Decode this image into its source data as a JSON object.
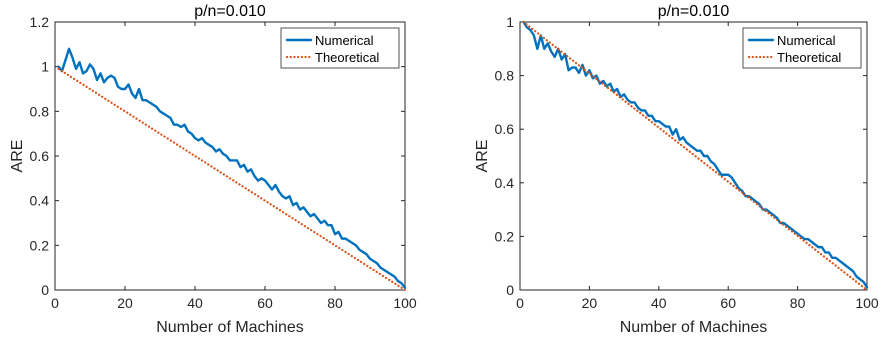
{
  "colors": {
    "numerical": "#0072BD",
    "theoretical": "#D95319",
    "axis": "#262626"
  },
  "chart_data": [
    {
      "type": "line",
      "title": "p/n=0.010",
      "xlabel": "Number of Machines",
      "ylabel": "ARE",
      "xlim": [
        0,
        100
      ],
      "ylim": [
        0,
        1.2
      ],
      "xticks": [
        0,
        20,
        40,
        60,
        80,
        100
      ],
      "xtick_labels": [
        "0",
        "20",
        "40",
        "60",
        "80",
        "100"
      ],
      "yticks": [
        0,
        0.2,
        0.4,
        0.6,
        0.8,
        1,
        1.2
      ],
      "ytick_labels": [
        "0",
        "0.2",
        "0.4",
        "0.6",
        "0.8",
        "1",
        "1.2"
      ],
      "grid": false,
      "legend": "top-right",
      "series": [
        {
          "name": "Numerical",
          "style": "solid",
          "x": [
            1,
            2,
            3,
            4,
            5,
            6,
            7,
            8,
            9,
            10,
            11,
            12,
            13,
            14,
            15,
            16,
            17,
            18,
            19,
            20,
            21,
            22,
            23,
            24,
            25,
            26,
            27,
            28,
            29,
            30,
            31,
            32,
            33,
            34,
            35,
            36,
            37,
            38,
            39,
            40,
            41,
            42,
            43,
            44,
            45,
            46,
            47,
            48,
            49,
            50,
            51,
            52,
            53,
            54,
            55,
            56,
            57,
            58,
            59,
            60,
            61,
            62,
            63,
            64,
            65,
            66,
            67,
            68,
            69,
            70,
            71,
            72,
            73,
            74,
            75,
            76,
            77,
            78,
            79,
            80,
            81,
            82,
            83,
            84,
            85,
            86,
            87,
            88,
            89,
            90,
            91,
            92,
            93,
            94,
            95,
            96,
            97,
            98,
            99,
            100
          ],
          "y": [
            1.0,
            0.98,
            1.03,
            1.08,
            1.04,
            0.99,
            1.02,
            0.97,
            0.98,
            1.01,
            0.99,
            0.94,
            0.97,
            0.93,
            0.95,
            0.96,
            0.95,
            0.91,
            0.9,
            0.9,
            0.92,
            0.88,
            0.86,
            0.9,
            0.85,
            0.85,
            0.84,
            0.83,
            0.82,
            0.8,
            0.79,
            0.78,
            0.77,
            0.74,
            0.74,
            0.73,
            0.74,
            0.71,
            0.7,
            0.68,
            0.67,
            0.68,
            0.66,
            0.65,
            0.64,
            0.62,
            0.63,
            0.61,
            0.6,
            0.58,
            0.58,
            0.58,
            0.55,
            0.56,
            0.53,
            0.54,
            0.51,
            0.49,
            0.5,
            0.49,
            0.47,
            0.45,
            0.47,
            0.44,
            0.42,
            0.41,
            0.42,
            0.38,
            0.39,
            0.36,
            0.37,
            0.35,
            0.33,
            0.34,
            0.32,
            0.3,
            0.31,
            0.29,
            0.29,
            0.25,
            0.26,
            0.23,
            0.23,
            0.22,
            0.21,
            0.2,
            0.18,
            0.17,
            0.16,
            0.14,
            0.13,
            0.12,
            0.1,
            0.09,
            0.08,
            0.07,
            0.06,
            0.04,
            0.03,
            0.01
          ]
        },
        {
          "name": "Theoretical",
          "style": "dotted",
          "x": [
            1,
            100
          ],
          "y": [
            0.99,
            0.0
          ]
        }
      ]
    },
    {
      "type": "line",
      "title": "p/n=0.010",
      "xlabel": "Number of Machines",
      "ylabel": "ARE",
      "xlim": [
        0,
        100
      ],
      "ylim": [
        0,
        1
      ],
      "xticks": [
        0,
        20,
        40,
        60,
        80,
        100
      ],
      "xtick_labels": [
        "0",
        "20",
        "40",
        "60",
        "80",
        "100"
      ],
      "yticks": [
        0,
        0.2,
        0.4,
        0.6,
        0.8,
        1
      ],
      "ytick_labels": [
        "0",
        "0.2",
        "0.4",
        "0.6",
        "0.8",
        "1"
      ],
      "grid": false,
      "legend": "top-right",
      "series": [
        {
          "name": "Numerical",
          "style": "solid",
          "x": [
            1,
            2,
            3,
            4,
            5,
            6,
            7,
            8,
            9,
            10,
            11,
            12,
            13,
            14,
            15,
            16,
            17,
            18,
            19,
            20,
            21,
            22,
            23,
            24,
            25,
            26,
            27,
            28,
            29,
            30,
            31,
            32,
            33,
            34,
            35,
            36,
            37,
            38,
            39,
            40,
            41,
            42,
            43,
            44,
            45,
            46,
            47,
            48,
            49,
            50,
            51,
            52,
            53,
            54,
            55,
            56,
            57,
            58,
            59,
            60,
            61,
            62,
            63,
            64,
            65,
            66,
            67,
            68,
            69,
            70,
            71,
            72,
            73,
            74,
            75,
            76,
            77,
            78,
            79,
            80,
            81,
            82,
            83,
            84,
            85,
            86,
            87,
            88,
            89,
            90,
            91,
            92,
            93,
            94,
            95,
            96,
            97,
            98,
            99,
            100
          ],
          "y": [
            1.0,
            0.98,
            0.97,
            0.95,
            0.9,
            0.95,
            0.9,
            0.92,
            0.89,
            0.87,
            0.9,
            0.86,
            0.88,
            0.82,
            0.83,
            0.83,
            0.81,
            0.84,
            0.8,
            0.82,
            0.79,
            0.8,
            0.77,
            0.78,
            0.76,
            0.77,
            0.74,
            0.75,
            0.72,
            0.73,
            0.71,
            0.7,
            0.7,
            0.68,
            0.67,
            0.67,
            0.65,
            0.65,
            0.63,
            0.63,
            0.62,
            0.61,
            0.61,
            0.58,
            0.6,
            0.56,
            0.57,
            0.55,
            0.54,
            0.53,
            0.52,
            0.52,
            0.5,
            0.5,
            0.48,
            0.47,
            0.45,
            0.43,
            0.43,
            0.43,
            0.42,
            0.4,
            0.38,
            0.37,
            0.35,
            0.35,
            0.34,
            0.33,
            0.32,
            0.3,
            0.3,
            0.29,
            0.28,
            0.27,
            0.25,
            0.25,
            0.24,
            0.23,
            0.22,
            0.21,
            0.2,
            0.19,
            0.19,
            0.18,
            0.17,
            0.16,
            0.16,
            0.14,
            0.14,
            0.12,
            0.12,
            0.11,
            0.1,
            0.09,
            0.08,
            0.07,
            0.05,
            0.04,
            0.03,
            0.01
          ]
        },
        {
          "name": "Theoretical",
          "style": "dotted",
          "x": [
            1,
            100
          ],
          "y": [
            1.0,
            0.0
          ]
        }
      ]
    }
  ]
}
